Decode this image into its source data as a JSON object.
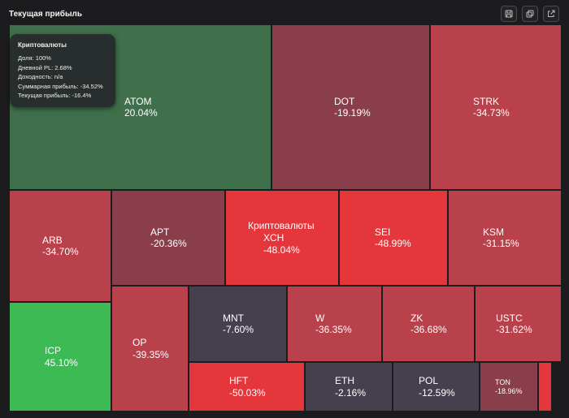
{
  "panel": {
    "title": "Текущая прибыль"
  },
  "toolbar": {
    "buttons": [
      {
        "icon": "save-icon"
      },
      {
        "icon": "copy-icon"
      },
      {
        "icon": "external-link-icon"
      }
    ]
  },
  "colors": {
    "background": "#1c1c1e",
    "strong_green": "#3cba54",
    "muted_green": "#3f6f4b",
    "strong_red": "#e5363c",
    "red": "#b8414b",
    "muted_red": "#8a3e4c",
    "neutral": "#463f4e"
  },
  "tooltip": {
    "title": "Криптовалюты",
    "rows": [
      "Доля: 100%",
      "Дневной PL: 2.68%",
      "Доходность: n/a",
      "Суммарная прибыль: -34.52%",
      "Текущая прибыль: -16.4%"
    ]
  },
  "group_label": "Криптовалюты",
  "tiles": [
    {
      "name": "ATOM",
      "value": "20.04%",
      "color": "#3f6f4b"
    },
    {
      "name": "DOT",
      "value": "-19.19%",
      "color": "#8a3e4c"
    },
    {
      "name": "STRK",
      "value": "-34.73%",
      "color": "#b8414b"
    },
    {
      "name": "ARB",
      "value": "-34.70%",
      "color": "#b8414b"
    },
    {
      "name": "APT",
      "value": "-20.36%",
      "color": "#8a3e4c"
    },
    {
      "name": "XCH",
      "value": "-48.04%",
      "color": "#e5363c"
    },
    {
      "name": "SEI",
      "value": "-48.99%",
      "color": "#e5363c"
    },
    {
      "name": "KSM",
      "value": "-31.15%",
      "color": "#b8414b"
    },
    {
      "name": "ICP",
      "value": "45.10%",
      "color": "#3cba54"
    },
    {
      "name": "OP",
      "value": "-39.35%",
      "color": "#b8414b"
    },
    {
      "name": "MNT",
      "value": "-7.60%",
      "color": "#463f4e"
    },
    {
      "name": "W",
      "value": "-36.35%",
      "color": "#b8414b"
    },
    {
      "name": "ZK",
      "value": "-36.68%",
      "color": "#b8414b"
    },
    {
      "name": "USTC",
      "value": "-31.62%",
      "color": "#b8414b"
    },
    {
      "name": "HFT",
      "value": "-50.03%",
      "color": "#e5363c"
    },
    {
      "name": "ETH",
      "value": "-2.16%",
      "color": "#463f4e"
    },
    {
      "name": "POL",
      "value": "-12.59%",
      "color": "#463f4e"
    },
    {
      "name": "TON",
      "value": "-18.96%",
      "color": "#8a3e4c"
    },
    {
      "name": "",
      "value": "",
      "color": "#e5363c"
    }
  ]
}
